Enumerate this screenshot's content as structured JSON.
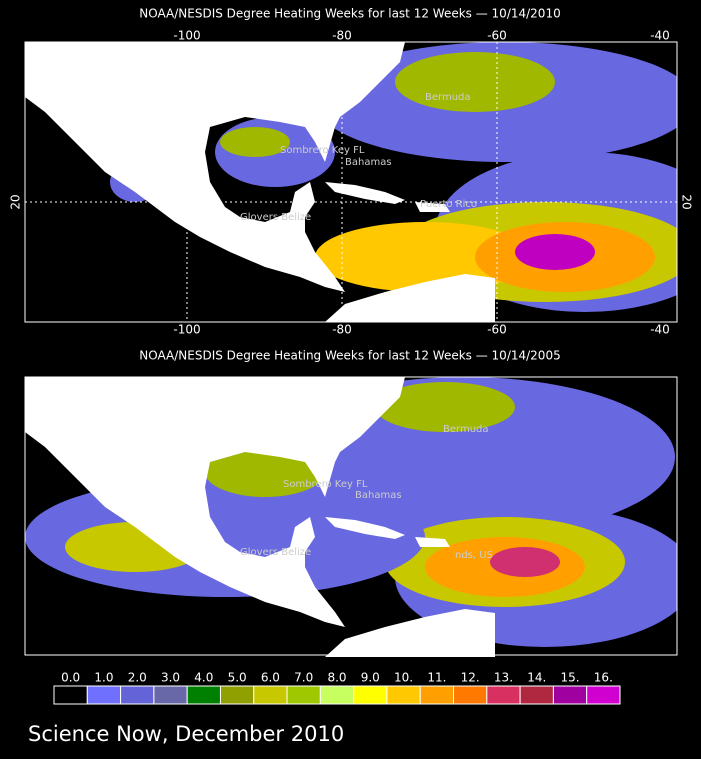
{
  "maps": [
    {
      "title": "NOAA/NESDIS Degree Heating Weeks for last 12 Weeks —  10/14/2010",
      "x_labels": [
        "-100",
        "-80",
        "-60",
        "-40"
      ],
      "y_label": "20",
      "places": [
        "Bermuda",
        "Sombrero Key FL",
        "Bahamas",
        "Glovers Belize",
        "Puerto Rico"
      ]
    },
    {
      "title": "NOAA/NESDIS Degree Heating Weeks for last 12 Weeks —  10/14/2005",
      "places": [
        "Bermuda",
        "Sombrero Key FL",
        "Bahamas",
        "Glovers Belize",
        "nds, US"
      ]
    }
  ],
  "colorbar": {
    "labels": [
      "0.0",
      "1.0",
      "2.0",
      "3.0",
      "4.0",
      "5.0",
      "6.0",
      "7.0",
      "8.0",
      "9.0",
      "10.",
      "11.",
      "12.",
      "13.",
      "14.",
      "15.",
      "16."
    ],
    "colors": [
      "#000000",
      "#7070ff",
      "#6464d8",
      "#6868a8",
      "#008000",
      "#90a000",
      "#c8c800",
      "#a0c800",
      "#c8ff60",
      "#ffff00",
      "#ffc800",
      "#ffa000",
      "#ff7800",
      "#d83060",
      "#b02840",
      "#a000a0",
      "#d000d0"
    ]
  },
  "caption": "Science Now, December 2010"
}
